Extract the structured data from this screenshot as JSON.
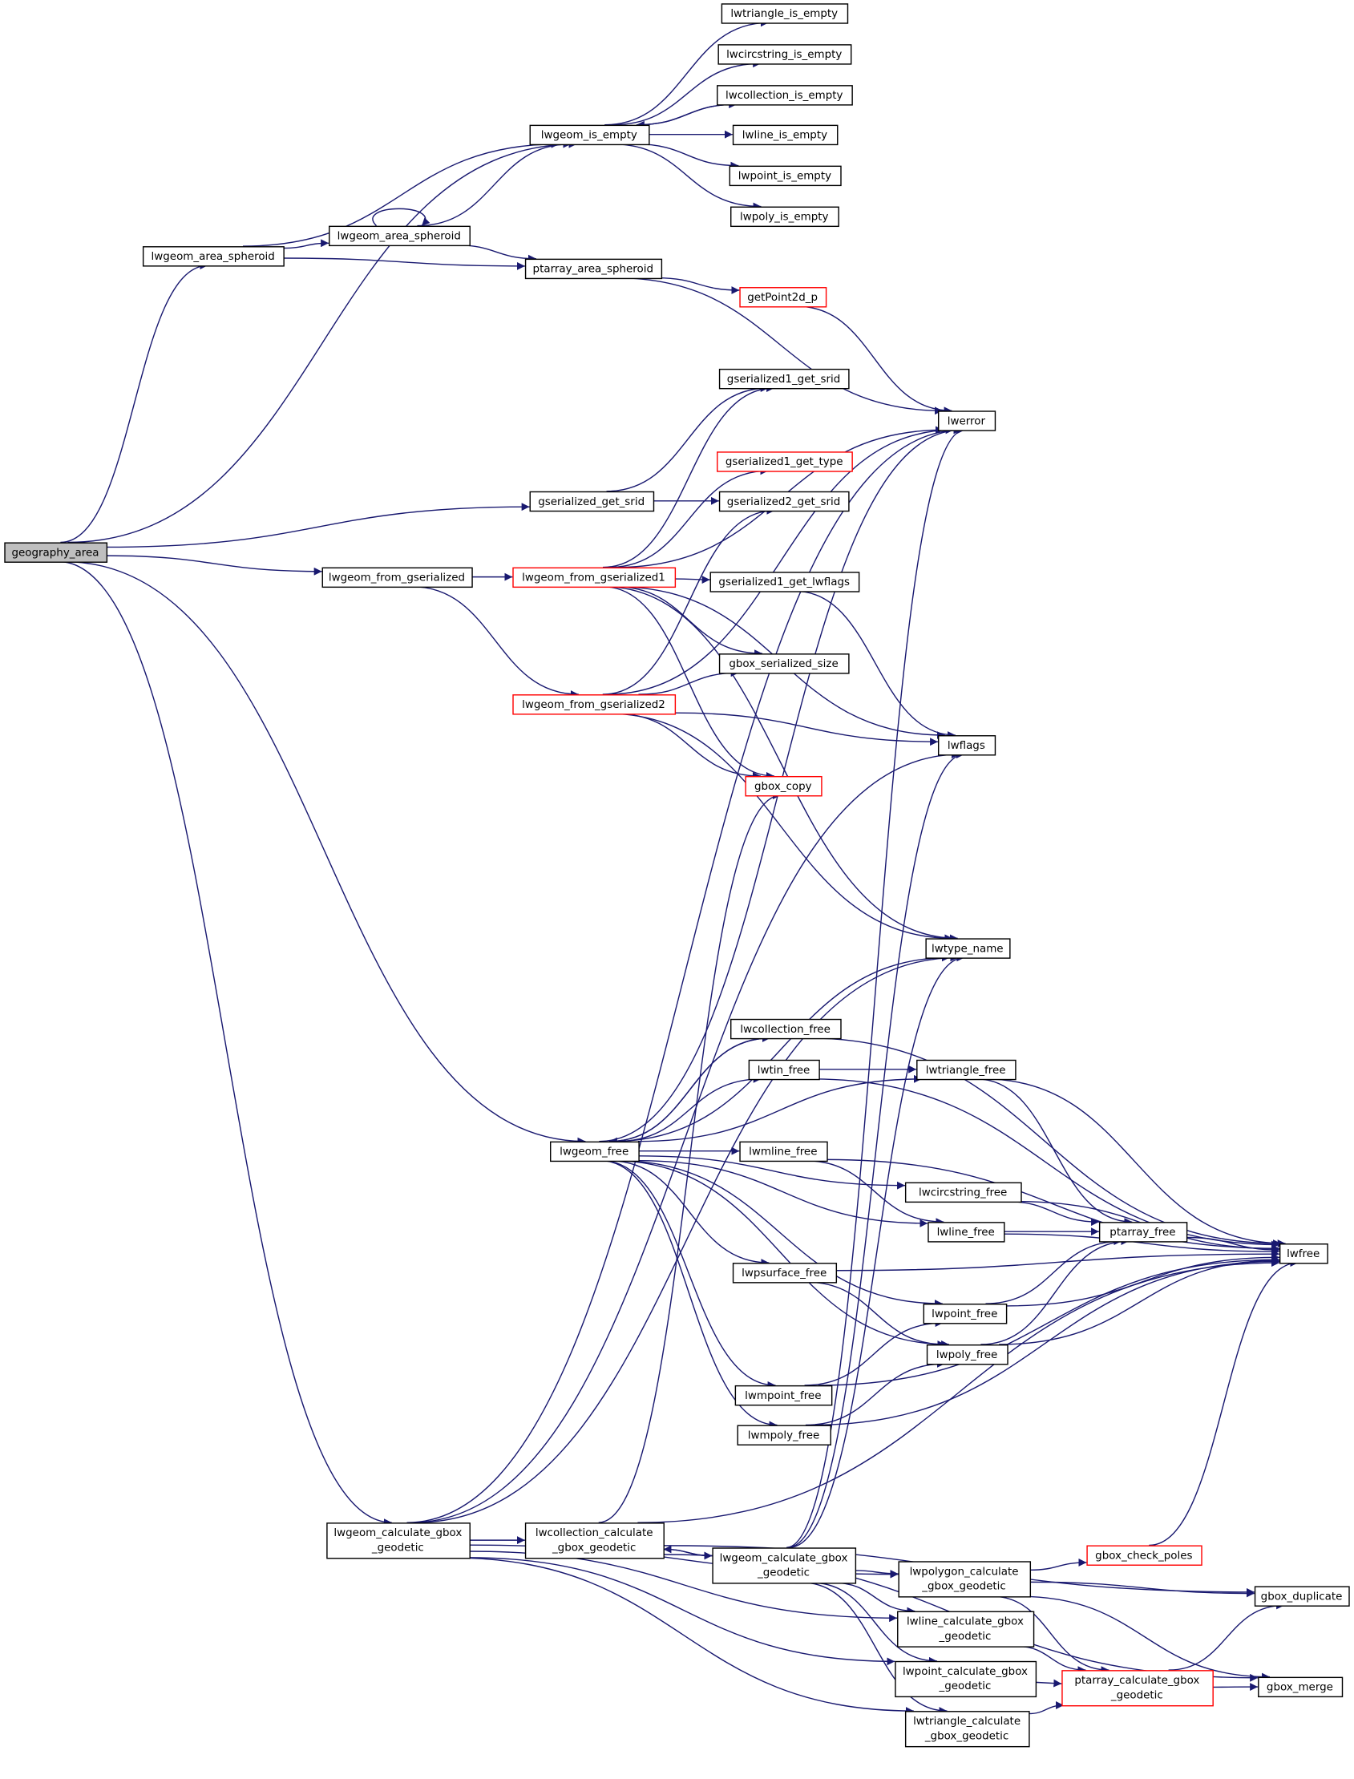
{
  "colors": {
    "edge": "#191970",
    "red_border": "#ff0000",
    "root_fill": "#bfbfbf"
  },
  "nodes": [
    {
      "id": "geography_area",
      "lines": [
        "geography_area"
      ],
      "style": "root"
    },
    {
      "id": "lwgeom_area_spheroid_a",
      "lines": [
        "lwgeom_area_spheroid"
      ]
    },
    {
      "id": "lwgeom_area_spheroid_b",
      "lines": [
        "lwgeom_area_spheroid"
      ]
    },
    {
      "id": "lwgeom_is_empty",
      "lines": [
        "lwgeom_is_empty"
      ]
    },
    {
      "id": "lwtriangle_is_empty",
      "lines": [
        "lwtriangle_is_empty"
      ]
    },
    {
      "id": "lwcircstring_is_empty",
      "lines": [
        "lwcircstring_is_empty"
      ]
    },
    {
      "id": "lwcollection_is_empty",
      "lines": [
        "lwcollection_is_empty"
      ]
    },
    {
      "id": "lwline_is_empty",
      "lines": [
        "lwline_is_empty"
      ]
    },
    {
      "id": "lwpoint_is_empty",
      "lines": [
        "lwpoint_is_empty"
      ]
    },
    {
      "id": "lwpoly_is_empty",
      "lines": [
        "lwpoly_is_empty"
      ]
    },
    {
      "id": "ptarray_area_spheroid",
      "lines": [
        "ptarray_area_spheroid"
      ]
    },
    {
      "id": "getPoint2d_p",
      "lines": [
        "getPoint2d_p"
      ],
      "style": "red"
    },
    {
      "id": "gserialized1_get_srid",
      "lines": [
        "gserialized1_get_srid"
      ]
    },
    {
      "id": "lwerror",
      "lines": [
        "lwerror"
      ]
    },
    {
      "id": "gserialized1_get_type",
      "lines": [
        "gserialized1_get_type"
      ],
      "style": "red"
    },
    {
      "id": "gserialized_get_srid",
      "lines": [
        "gserialized_get_srid"
      ]
    },
    {
      "id": "gserialized2_get_srid",
      "lines": [
        "gserialized2_get_srid"
      ]
    },
    {
      "id": "lwgeom_from_gserialized",
      "lines": [
        "lwgeom_from_gserialized"
      ]
    },
    {
      "id": "lwgeom_from_gserialized1",
      "lines": [
        "lwgeom_from_gserialized1"
      ],
      "style": "red"
    },
    {
      "id": "gserialized1_get_lwflags",
      "lines": [
        "gserialized1_get_lwflags"
      ]
    },
    {
      "id": "gbox_serialized_size",
      "lines": [
        "gbox_serialized_size"
      ]
    },
    {
      "id": "lwgeom_from_gserialized2",
      "lines": [
        "lwgeom_from_gserialized2"
      ],
      "style": "red"
    },
    {
      "id": "lwflags",
      "lines": [
        "lwflags"
      ]
    },
    {
      "id": "gbox_copy",
      "lines": [
        "gbox_copy"
      ],
      "style": "red"
    },
    {
      "id": "lwtype_name",
      "lines": [
        "lwtype_name"
      ]
    },
    {
      "id": "lwcollection_free",
      "lines": [
        "lwcollection_free"
      ]
    },
    {
      "id": "lwtin_free",
      "lines": [
        "lwtin_free"
      ]
    },
    {
      "id": "lwtriangle_free",
      "lines": [
        "lwtriangle_free"
      ]
    },
    {
      "id": "lwgeom_free",
      "lines": [
        "lwgeom_free"
      ]
    },
    {
      "id": "lwmline_free",
      "lines": [
        "lwmline_free"
      ]
    },
    {
      "id": "lwcircstring_free",
      "lines": [
        "lwcircstring_free"
      ]
    },
    {
      "id": "lwline_free",
      "lines": [
        "lwline_free"
      ]
    },
    {
      "id": "ptarray_free",
      "lines": [
        "ptarray_free"
      ]
    },
    {
      "id": "lwfree",
      "lines": [
        "lwfree"
      ]
    },
    {
      "id": "lwpsurface_free",
      "lines": [
        "lwpsurface_free"
      ]
    },
    {
      "id": "lwpoint_free",
      "lines": [
        "lwpoint_free"
      ]
    },
    {
      "id": "lwpoly_free",
      "lines": [
        "lwpoly_free"
      ]
    },
    {
      "id": "lwmpoint_free",
      "lines": [
        "lwmpoint_free"
      ]
    },
    {
      "id": "lwmpoly_free",
      "lines": [
        "lwmpoly_free"
      ]
    },
    {
      "id": "lwgeom_calculate_gbox_geodetic_a",
      "lines": [
        "lwgeom_calculate_gbox",
        "_geodetic"
      ]
    },
    {
      "id": "lwcollection_calculate_gbox_geodetic",
      "lines": [
        "lwcollection_calculate",
        "_gbox_geodetic"
      ]
    },
    {
      "id": "lwgeom_calculate_gbox_geodetic_b",
      "lines": [
        "lwgeom_calculate_gbox",
        "_geodetic"
      ]
    },
    {
      "id": "gbox_check_poles",
      "lines": [
        "gbox_check_poles"
      ],
      "style": "red"
    },
    {
      "id": "lwpolygon_calculate_gbox_geodetic",
      "lines": [
        "lwpolygon_calculate",
        "_gbox_geodetic"
      ]
    },
    {
      "id": "gbox_duplicate",
      "lines": [
        "gbox_duplicate"
      ]
    },
    {
      "id": "lwline_calculate_gbox_geodetic",
      "lines": [
        "lwline_calculate_gbox",
        "_geodetic"
      ]
    },
    {
      "id": "lwpoint_calculate_gbox_geodetic",
      "lines": [
        "lwpoint_calculate_gbox",
        "_geodetic"
      ]
    },
    {
      "id": "ptarray_calculate_gbox_geodetic",
      "lines": [
        "ptarray_calculate_gbox",
        "_geodetic"
      ],
      "style": "red"
    },
    {
      "id": "gbox_merge",
      "lines": [
        "gbox_merge"
      ]
    },
    {
      "id": "lwtriangle_calculate_gbox_geodetic",
      "lines": [
        "lwtriangle_calculate",
        "_gbox_geodetic"
      ]
    }
  ],
  "edges": [
    [
      "geography_area",
      "lwgeom_is_empty"
    ],
    [
      "geography_area",
      "lwgeom_area_spheroid_a"
    ],
    [
      "geography_area",
      "gserialized_get_srid"
    ],
    [
      "geography_area",
      "lwgeom_from_gserialized"
    ],
    [
      "geography_area",
      "lwgeom_free"
    ],
    [
      "geography_area",
      "lwgeom_calculate_gbox_geodetic_a"
    ],
    [
      "lwgeom_area_spheroid_a",
      "lwgeom_area_spheroid_b"
    ],
    [
      "lwgeom_area_spheroid_a",
      "ptarray_area_spheroid"
    ],
    [
      "lwgeom_area_spheroid_a",
      "lwgeom_is_empty"
    ],
    [
      "lwgeom_area_spheroid_b",
      "lwgeom_area_spheroid_b"
    ],
    [
      "lwgeom_area_spheroid_b",
      "lwgeom_is_empty"
    ],
    [
      "lwgeom_area_spheroid_b",
      "ptarray_area_spheroid"
    ],
    [
      "lwgeom_is_empty",
      "lwtriangle_is_empty"
    ],
    [
      "lwgeom_is_empty",
      "lwcircstring_is_empty"
    ],
    [
      "lwgeom_is_empty",
      "lwcollection_is_empty"
    ],
    [
      "lwgeom_is_empty",
      "lwline_is_empty"
    ],
    [
      "lwgeom_is_empty",
      "lwpoint_is_empty"
    ],
    [
      "lwgeom_is_empty",
      "lwpoly_is_empty"
    ],
    [
      "lwcollection_is_empty",
      "lwgeom_is_empty"
    ],
    [
      "ptarray_area_spheroid",
      "getPoint2d_p"
    ],
    [
      "ptarray_area_spheroid",
      "lwerror"
    ],
    [
      "getPoint2d_p",
      "lwerror"
    ],
    [
      "gserialized_get_srid",
      "gserialized1_get_srid"
    ],
    [
      "gserialized_get_srid",
      "gserialized2_get_srid"
    ],
    [
      "lwgeom_from_gserialized",
      "lwgeom_from_gserialized1"
    ],
    [
      "lwgeom_from_gserialized",
      "lwgeom_from_gserialized2"
    ],
    [
      "lwgeom_from_gserialized1",
      "gserialized1_get_srid"
    ],
    [
      "lwgeom_from_gserialized1",
      "lwerror"
    ],
    [
      "lwgeom_from_gserialized1",
      "gserialized1_get_type"
    ],
    [
      "lwgeom_from_gserialized1",
      "gserialized1_get_lwflags"
    ],
    [
      "lwgeom_from_gserialized1",
      "lwflags"
    ],
    [
      "lwgeom_from_gserialized1",
      "gbox_serialized_size"
    ],
    [
      "lwgeom_from_gserialized1",
      "gbox_copy"
    ],
    [
      "lwgeom_from_gserialized1",
      "lwtype_name"
    ],
    [
      "gserialized1_get_lwflags",
      "lwflags"
    ],
    [
      "lwgeom_from_gserialized2",
      "gserialized2_get_srid"
    ],
    [
      "lwgeom_from_gserialized2",
      "gbox_serialized_size"
    ],
    [
      "lwgeom_from_gserialized2",
      "lwerror"
    ],
    [
      "lwgeom_from_gserialized2",
      "lwflags"
    ],
    [
      "lwgeom_from_gserialized2",
      "gbox_copy"
    ],
    [
      "lwgeom_from_gserialized2",
      "lwtype_name"
    ],
    [
      "lwgeom_free",
      "lwerror"
    ],
    [
      "lwgeom_free",
      "lwtype_name"
    ],
    [
      "lwgeom_free",
      "lwcollection_free"
    ],
    [
      "lwgeom_free",
      "lwtin_free"
    ],
    [
      "lwgeom_free",
      "lwtriangle_free"
    ],
    [
      "lwgeom_free",
      "lwmline_free"
    ],
    [
      "lwgeom_free",
      "lwcircstring_free"
    ],
    [
      "lwgeom_free",
      "lwline_free"
    ],
    [
      "lwgeom_free",
      "lwpsurface_free"
    ],
    [
      "lwgeom_free",
      "lwpoint_free"
    ],
    [
      "lwgeom_free",
      "lwpoly_free"
    ],
    [
      "lwgeom_free",
      "lwmpoint_free"
    ],
    [
      "lwgeom_free",
      "lwmpoly_free"
    ],
    [
      "lwcollection_free",
      "lwgeom_free"
    ],
    [
      "lwcollection_free",
      "lwfree"
    ],
    [
      "lwtin_free",
      "lwtriangle_free"
    ],
    [
      "lwtin_free",
      "lwfree"
    ],
    [
      "lwtriangle_free",
      "ptarray_free"
    ],
    [
      "lwtriangle_free",
      "lwfree"
    ],
    [
      "lwmline_free",
      "lwline_free"
    ],
    [
      "lwmline_free",
      "lwfree"
    ],
    [
      "lwcircstring_free",
      "ptarray_free"
    ],
    [
      "lwcircstring_free",
      "lwfree"
    ],
    [
      "lwline_free",
      "ptarray_free"
    ],
    [
      "lwline_free",
      "lwfree"
    ],
    [
      "ptarray_free",
      "lwfree"
    ],
    [
      "lwpsurface_free",
      "lwpoly_free"
    ],
    [
      "lwpsurface_free",
      "lwfree"
    ],
    [
      "lwpoint_free",
      "ptarray_free"
    ],
    [
      "lwpoint_free",
      "lwfree"
    ],
    [
      "lwpoly_free",
      "ptarray_free"
    ],
    [
      "lwpoly_free",
      "lwfree"
    ],
    [
      "lwmpoint_free",
      "lwpoint_free"
    ],
    [
      "lwmpoint_free",
      "lwfree"
    ],
    [
      "lwmpoly_free",
      "lwpoly_free"
    ],
    [
      "lwmpoly_free",
      "lwfree"
    ],
    [
      "lwgeom_calculate_gbox_geodetic_a",
      "lwerror"
    ],
    [
      "lwgeom_calculate_gbox_geodetic_a",
      "lwflags"
    ],
    [
      "lwgeom_calculate_gbox_geodetic_a",
      "lwtype_name"
    ],
    [
      "lwgeom_calculate_gbox_geodetic_a",
      "lwcollection_calculate_gbox_geodetic"
    ],
    [
      "lwgeom_calculate_gbox_geodetic_a",
      "lwpolygon_calculate_gbox_geodetic"
    ],
    [
      "lwgeom_calculate_gbox_geodetic_a",
      "lwline_calculate_gbox_geodetic"
    ],
    [
      "lwgeom_calculate_gbox_geodetic_a",
      "lwpoint_calculate_gbox_geodetic"
    ],
    [
      "lwgeom_calculate_gbox_geodetic_a",
      "lwtriangle_calculate_gbox_geodetic"
    ],
    [
      "lwcollection_calculate_gbox_geodetic",
      "gbox_copy"
    ],
    [
      "lwcollection_calculate_gbox_geodetic",
      "lwfree"
    ],
    [
      "lwcollection_calculate_gbox_geodetic",
      "gbox_duplicate"
    ],
    [
      "lwcollection_calculate_gbox_geodetic",
      "lwgeom_calculate_gbox_geodetic_b"
    ],
    [
      "lwcollection_calculate_gbox_geodetic",
      "gbox_merge"
    ],
    [
      "lwgeom_calculate_gbox_geodetic_b",
      "lwcollection_calculate_gbox_geodetic"
    ],
    [
      "lwgeom_calculate_gbox_geodetic_b",
      "lwerror"
    ],
    [
      "lwgeom_calculate_gbox_geodetic_b",
      "lwflags"
    ],
    [
      "lwgeom_calculate_gbox_geodetic_b",
      "lwtype_name"
    ],
    [
      "lwgeom_calculate_gbox_geodetic_b",
      "lwpolygon_calculate_gbox_geodetic"
    ],
    [
      "lwgeom_calculate_gbox_geodetic_b",
      "lwline_calculate_gbox_geodetic"
    ],
    [
      "lwgeom_calculate_gbox_geodetic_b",
      "lwpoint_calculate_gbox_geodetic"
    ],
    [
      "lwgeom_calculate_gbox_geodetic_b",
      "lwtriangle_calculate_gbox_geodetic"
    ],
    [
      "lwpolygon_calculate_gbox_geodetic",
      "gbox_check_poles"
    ],
    [
      "lwpolygon_calculate_gbox_geodetic",
      "gbox_duplicate"
    ],
    [
      "lwpolygon_calculate_gbox_geodetic",
      "ptarray_calculate_gbox_geodetic"
    ],
    [
      "lwpolygon_calculate_gbox_geodetic",
      "gbox_merge"
    ],
    [
      "gbox_check_poles",
      "lwfree"
    ],
    [
      "lwline_calculate_gbox_geodetic",
      "ptarray_calculate_gbox_geodetic"
    ],
    [
      "lwpoint_calculate_gbox_geodetic",
      "ptarray_calculate_gbox_geodetic"
    ],
    [
      "lwtriangle_calculate_gbox_geodetic",
      "ptarray_calculate_gbox_geodetic"
    ],
    [
      "ptarray_calculate_gbox_geodetic",
      "gbox_duplicate"
    ],
    [
      "ptarray_calculate_gbox_geodetic",
      "gbox_merge"
    ]
  ]
}
